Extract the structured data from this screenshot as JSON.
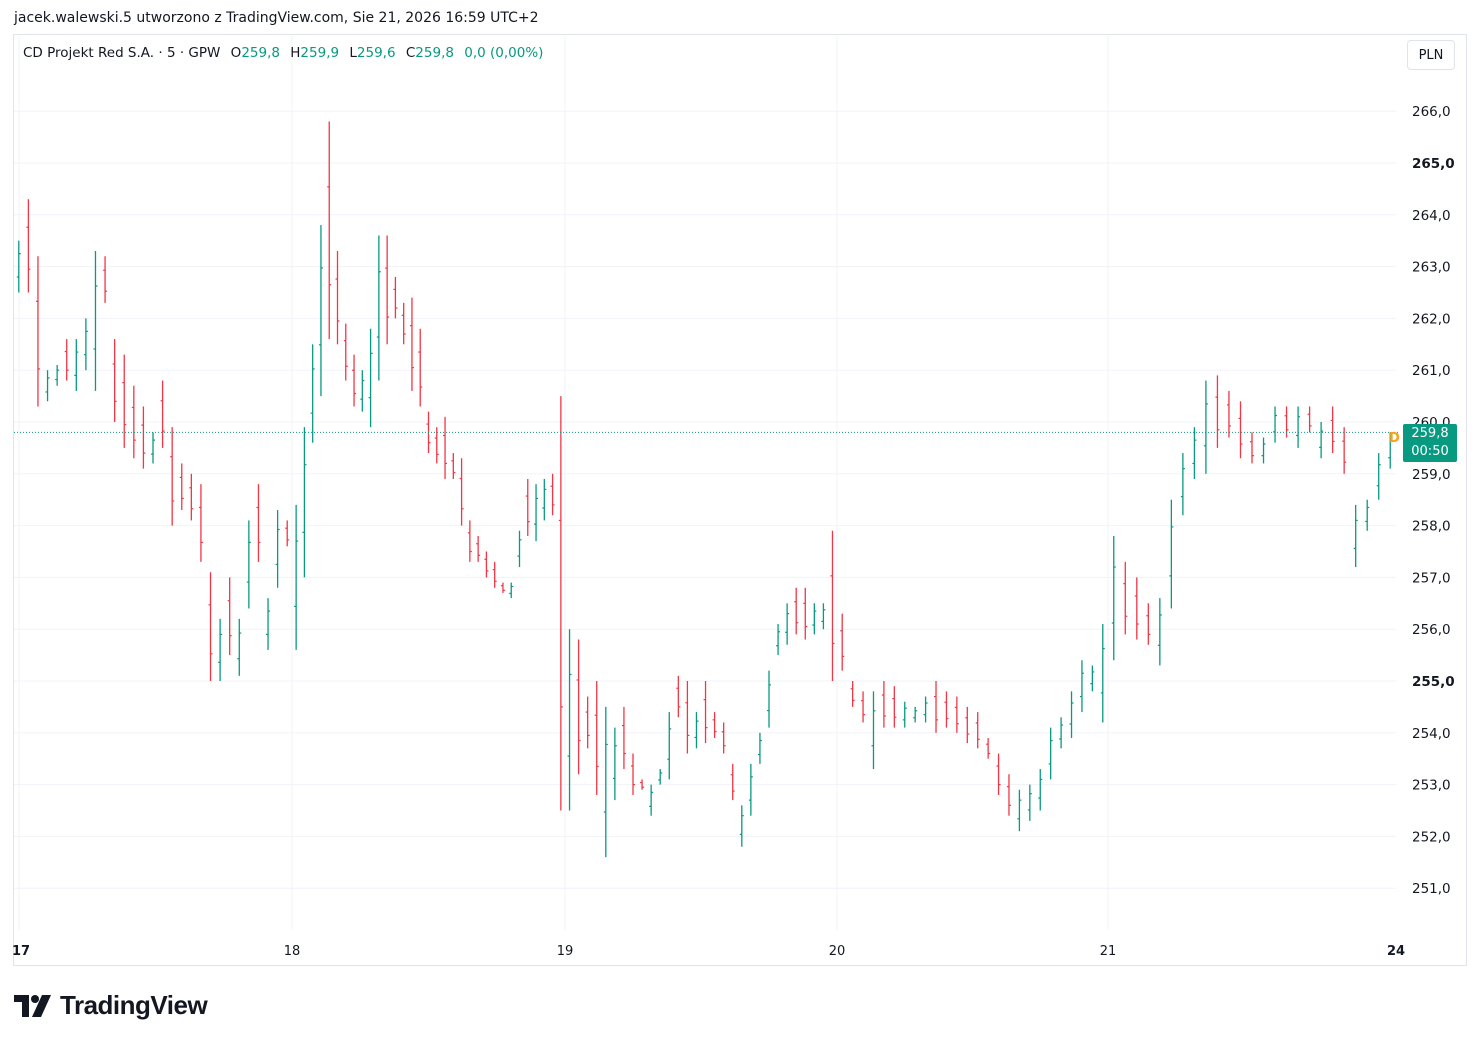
{
  "header": {
    "text": "jacek.walewski.5 utworzono z TradingView.com, Sie 21, 2026 16:59 UTC+2"
  },
  "legend": {
    "symbol": "CD Projekt Red S.A. · 5 · GPW",
    "o_label": "O",
    "o_value": "259,8",
    "h_label": "H",
    "h_value": "259,9",
    "l_label": "L",
    "l_value": "259,6",
    "c_label": "C",
    "c_value": "259,8",
    "change": "0,0 (0,00%)"
  },
  "currency_button": {
    "label": "PLN"
  },
  "price_tag": {
    "price": "259,8",
    "countdown": "00:50"
  },
  "dividend_marker": {
    "label": "D"
  },
  "logo": {
    "text": "TradingView"
  },
  "colors": {
    "up": "#089981",
    "down": "#f23645",
    "grid": "#f0f3fa",
    "tag": "#089981"
  },
  "chart_data": {
    "type": "ohlc",
    "ylim": [
      250.6,
      266.9
    ],
    "y_ticks": [
      "266,0",
      "265,0",
      "264,0",
      "263,0",
      "262,0",
      "261,0",
      "260,0",
      "259,0",
      "258,0",
      "257,0",
      "256,0",
      "255,0",
      "254,0",
      "253,0",
      "252,0",
      "251,0"
    ],
    "y_tick_values": [
      266,
      265,
      264,
      263,
      262,
      261,
      260,
      259,
      258,
      257,
      256,
      255,
      254,
      253,
      252,
      251
    ],
    "y_tick_bold": [
      "265,0",
      "255,0"
    ],
    "x_ticks": [
      "17",
      "18",
      "19",
      "20",
      "21",
      "24"
    ],
    "x_tick_bold": [
      "17",
      "24"
    ],
    "last_price": 259.8,
    "series": [
      {
        "day": "17",
        "points": [
          [
            263.5,
            262.5
          ],
          [
            264.3,
            262.5
          ],
          [
            263.2,
            260.3
          ],
          [
            261.0,
            260.4
          ],
          [
            261.1,
            260.7
          ],
          [
            261.6,
            260.8
          ],
          [
            261.6,
            260.6
          ],
          [
            262.0,
            261.0
          ],
          [
            263.3,
            260.6
          ],
          [
            263.2,
            262.3
          ],
          [
            261.6,
            260.0
          ],
          [
            261.3,
            259.5
          ],
          [
            260.7,
            259.3
          ],
          [
            260.3,
            259.1
          ],
          [
            259.8,
            259.2
          ],
          [
            260.8,
            259.5
          ],
          [
            259.9,
            258.0
          ],
          [
            259.2,
            258.3
          ],
          [
            259.0,
            258.1
          ],
          [
            258.8,
            257.3
          ],
          [
            257.1,
            255.0
          ],
          [
            256.2,
            255.0
          ],
          [
            257.0,
            255.5
          ],
          [
            256.2,
            255.1
          ],
          [
            258.1,
            256.4
          ],
          [
            258.8,
            257.3
          ],
          [
            256.6,
            255.6
          ],
          [
            258.3,
            256.8
          ],
          [
            258.1,
            257.6
          ]
        ]
      },
      {
        "day": "18",
        "points": [
          [
            258.4,
            255.6
          ],
          [
            259.9,
            257.0
          ],
          [
            261.5,
            259.6
          ],
          [
            263.8,
            260.5
          ],
          [
            265.8,
            261.6
          ],
          [
            263.3,
            261.5
          ],
          [
            261.9,
            260.8
          ],
          [
            261.3,
            260.3
          ],
          [
            261.0,
            260.2
          ],
          [
            261.8,
            259.9
          ],
          [
            263.6,
            260.8
          ],
          [
            263.6,
            261.5
          ],
          [
            262.8,
            262.0
          ],
          [
            262.3,
            261.5
          ],
          [
            262.4,
            260.6
          ],
          [
            261.8,
            260.3
          ],
          [
            260.2,
            259.4
          ],
          [
            259.9,
            259.2
          ],
          [
            260.1,
            258.9
          ],
          [
            259.4,
            258.9
          ],
          [
            259.3,
            258.0
          ],
          [
            258.1,
            257.3
          ],
          [
            257.8,
            257.3
          ],
          [
            257.5,
            257.0
          ],
          [
            257.3,
            256.8
          ],
          [
            256.9,
            256.7
          ],
          [
            256.9,
            256.6
          ],
          [
            257.9,
            257.2
          ],
          [
            258.9,
            257.8
          ],
          [
            258.8,
            257.7
          ],
          [
            258.9,
            258.1
          ],
          [
            259.0,
            258.2
          ],
          [
            260.5,
            252.5
          ]
        ]
      },
      {
        "day": "19",
        "points": [
          [
            256.0,
            252.5
          ],
          [
            255.8,
            253.2
          ],
          [
            254.7,
            253.7
          ],
          [
            255.0,
            252.8
          ],
          [
            254.5,
            251.6
          ],
          [
            254.1,
            252.7
          ],
          [
            254.5,
            253.3
          ],
          [
            253.6,
            252.8
          ],
          [
            253.1,
            252.9
          ],
          [
            253.0,
            252.4
          ],
          [
            253.3,
            253.0
          ],
          [
            254.4,
            253.1
          ],
          [
            255.1,
            254.3
          ],
          [
            255.0,
            253.6
          ],
          [
            254.4,
            253.7
          ],
          [
            255.0,
            253.8
          ],
          [
            254.4,
            253.9
          ],
          [
            254.2,
            253.6
          ],
          [
            253.4,
            252.7
          ],
          [
            252.6,
            251.8
          ],
          [
            253.4,
            252.4
          ],
          [
            254.0,
            253.4
          ],
          [
            255.2,
            254.1
          ],
          [
            256.1,
            255.5
          ],
          [
            256.5,
            255.7
          ],
          [
            256.8,
            255.9
          ],
          [
            256.8,
            255.8
          ],
          [
            256.5,
            255.9
          ],
          [
            256.5,
            256.0
          ],
          [
            257.9,
            255.0
          ]
        ]
      },
      {
        "day": "20",
        "points": [
          [
            256.3,
            255.2
          ],
          [
            255.0,
            254.5
          ],
          [
            254.8,
            254.2
          ],
          [
            254.8,
            253.3
          ],
          [
            255.0,
            254.1
          ],
          [
            254.9,
            254.1
          ],
          [
            254.6,
            254.1
          ],
          [
            254.5,
            254.2
          ],
          [
            254.7,
            254.2
          ],
          [
            255.0,
            254.0
          ],
          [
            254.8,
            254.1
          ],
          [
            254.7,
            254.0
          ],
          [
            254.5,
            253.8
          ],
          [
            254.4,
            253.7
          ],
          [
            253.9,
            253.5
          ],
          [
            253.6,
            252.8
          ],
          [
            253.2,
            252.4
          ],
          [
            252.9,
            252.1
          ],
          [
            253.0,
            252.3
          ],
          [
            253.3,
            252.5
          ],
          [
            254.1,
            253.1
          ],
          [
            254.3,
            253.7
          ],
          [
            254.8,
            253.9
          ],
          [
            255.4,
            254.4
          ],
          [
            255.3,
            254.8
          ],
          [
            256.1,
            254.2
          ]
        ]
      },
      {
        "day": "21",
        "points": [
          [
            257.8,
            255.4
          ],
          [
            257.3,
            255.9
          ],
          [
            257.0,
            255.8
          ],
          [
            256.5,
            255.7
          ],
          [
            256.6,
            255.3
          ],
          [
            258.5,
            256.4
          ],
          [
            259.4,
            258.2
          ],
          [
            259.9,
            258.9
          ],
          [
            260.8,
            259.0
          ],
          [
            260.9,
            259.5
          ],
          [
            260.6,
            259.7
          ],
          [
            260.4,
            259.3
          ],
          [
            259.8,
            259.2
          ],
          [
            259.7,
            259.2
          ],
          [
            260.3,
            259.6
          ],
          [
            260.3,
            259.7
          ],
          [
            260.3,
            259.5
          ],
          [
            260.3,
            259.8
          ],
          [
            260.0,
            259.3
          ],
          [
            260.3,
            259.4
          ],
          [
            259.9,
            259.0
          ],
          [
            258.4,
            257.2
          ],
          [
            258.5,
            257.9
          ],
          [
            259.4,
            258.5
          ],
          [
            259.8,
            259.1
          ]
        ]
      }
    ]
  }
}
